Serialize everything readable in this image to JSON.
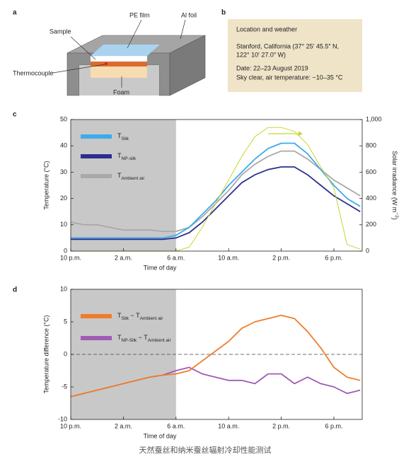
{
  "diagram": {
    "letter": "a",
    "labels": [
      "Sample",
      "PE film",
      "Al foil",
      "Thermocouple",
      "Foam"
    ]
  },
  "info_box": {
    "letter": "b",
    "title": "Location and weather",
    "lines": [
      "Stanford, California (37° 25′ 45.5″ N,",
      "122° 10′ 27.0″ W)",
      "Date: 22–23 August 2019",
      "Sky clear, air temperature: ~10–35 °C"
    ]
  },
  "caption": "天然蚕丝和纳米蚕丝辐射冷却性能测试",
  "chart_data": [
    {
      "type": "line",
      "letter": "c",
      "xlabel": "Time of day",
      "ylabel": "Temperature (°C)",
      "y2label_parts": [
        "Solar irradiance (W m",
        "−2",
        ")"
      ],
      "xlim": [
        22,
        44.15
      ],
      "xticks": [
        {
          "value": 22,
          "label": "10 p.m."
        },
        {
          "value": 26,
          "label": "2 a.m."
        },
        {
          "value": 30,
          "label": "6 a.m."
        },
        {
          "value": 34,
          "label": "10 a.m."
        },
        {
          "value": 38,
          "label": "2 p.m."
        },
        {
          "value": 42,
          "label": "6 p.m."
        }
      ],
      "ylim": [
        0,
        50
      ],
      "yticks": [
        0,
        10,
        20,
        30,
        40,
        50
      ],
      "y2lim": [
        0,
        1000
      ],
      "y2ticks": [
        0,
        200,
        400,
        600,
        800,
        {
          "value": 1000,
          "label": "1,000"
        }
      ],
      "shade": [
        22,
        30
      ],
      "shade_color": "#c8c8c8",
      "series": [
        {
          "name_parts": [
            "T",
            "Ambient air"
          ],
          "color": "#a9a9a9",
          "x": [
            22,
            23,
            24,
            25,
            26,
            27,
            28,
            29,
            30,
            31,
            32,
            33,
            34,
            35,
            36,
            37,
            38,
            39,
            40,
            41,
            42,
            43,
            44
          ],
          "values": [
            11,
            10,
            10,
            9,
            8,
            8,
            8,
            7.5,
            7.5,
            9,
            13,
            18,
            23,
            29,
            33,
            36,
            38,
            38,
            35,
            31,
            27,
            24,
            21
          ]
        },
        {
          "name_parts": [
            "T",
            "Silk"
          ],
          "color": "#3eaaea",
          "x": [
            22,
            23,
            24,
            25,
            26,
            27,
            28,
            29,
            30,
            31,
            32,
            33,
            34,
            35,
            36,
            37,
            38,
            39,
            40,
            41,
            42,
            43,
            44
          ],
          "values": [
            5,
            5,
            5,
            5,
            5,
            5,
            5,
            5,
            6,
            9,
            14,
            19,
            25,
            30,
            35,
            39,
            41,
            41,
            37,
            31,
            25,
            20,
            17
          ]
        },
        {
          "name_parts": [
            "T",
            "NP-silk"
          ],
          "color": "#2c2f8e",
          "x": [
            22,
            23,
            24,
            25,
            26,
            27,
            28,
            29,
            30,
            31,
            32,
            33,
            34,
            35,
            36,
            37,
            38,
            39,
            40,
            41,
            42,
            43,
            44
          ],
          "values": [
            4.5,
            4.5,
            4.5,
            4.5,
            4.5,
            4.5,
            4.5,
            4.5,
            5,
            7,
            11,
            16,
            21,
            26,
            29,
            31,
            32,
            32,
            29,
            25,
            21,
            18,
            15
          ]
        },
        {
          "axis": "y2",
          "color": "#c9d530",
          "x": [
            22,
            23,
            24,
            25,
            26,
            27,
            28,
            29,
            30,
            31,
            32,
            33,
            34,
            35,
            36,
            37,
            38,
            39,
            40,
            41,
            42,
            43,
            44
          ],
          "values": [
            0,
            0,
            0,
            0,
            0,
            0,
            0,
            0,
            0,
            30,
            180,
            360,
            540,
            720,
            870,
            940,
            940,
            910,
            810,
            640,
            480,
            50,
            15
          ]
        }
      ],
      "legend_order": [
        1,
        2,
        0
      ]
    },
    {
      "type": "line",
      "letter": "d",
      "xlabel": "Time of day",
      "ylabel": "Temperature difference (°C)",
      "xlim": [
        22,
        44.15
      ],
      "xticks": [
        {
          "value": 22,
          "label": "10 p.m."
        },
        {
          "value": 26,
          "label": "2 a.m."
        },
        {
          "value": 30,
          "label": "6 a.m."
        },
        {
          "value": 34,
          "label": "10 a.m."
        },
        {
          "value": 38,
          "label": "2 p.m."
        },
        {
          "value": 42,
          "label": "6 p.m."
        }
      ],
      "ylim": [
        -10,
        10
      ],
      "yticks": [
        -10,
        -5,
        0,
        5,
        10
      ],
      "shade": [
        22,
        30
      ],
      "shade_color": "#c8c8c8",
      "zero_line": true,
      "series": [
        {
          "name_parts": [
            "T",
            "NP-Silk",
            " − T",
            "Ambient air"
          ],
          "color": "#a05bb5",
          "x": [
            22,
            23,
            24,
            25,
            26,
            27,
            28,
            29,
            30,
            31,
            32,
            33,
            34,
            35,
            36,
            37,
            38,
            39,
            40,
            41,
            42,
            43,
            44
          ],
          "values": [
            -6.5,
            -6,
            -5.5,
            -5,
            -4.5,
            -4,
            -3.5,
            -3.2,
            -2.5,
            -2,
            -3,
            -3.5,
            -4,
            -4,
            -4.5,
            -3,
            -3,
            -4.5,
            -3.5,
            -4.5,
            -5,
            -6,
            -5.5
          ]
        },
        {
          "name_parts": [
            "T",
            "Silk",
            " − T",
            "Ambient air"
          ],
          "color": "#f07d2c",
          "x": [
            22,
            23,
            24,
            25,
            26,
            27,
            28,
            29,
            30,
            31,
            32,
            33,
            34,
            35,
            36,
            37,
            38,
            39,
            40,
            41,
            42,
            43,
            44
          ],
          "values": [
            -6.5,
            -6,
            -5.5,
            -5,
            -4.5,
            -4,
            -3.5,
            -3.2,
            -3,
            -2.5,
            -1,
            0.5,
            2,
            4,
            5,
            5.5,
            6,
            5.5,
            3.5,
            1,
            -2,
            -3.5,
            -4
          ]
        }
      ],
      "legend_order": [
        1,
        0
      ]
    }
  ]
}
